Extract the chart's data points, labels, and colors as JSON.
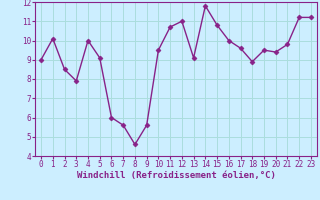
{
  "x": [
    0,
    1,
    2,
    3,
    4,
    5,
    6,
    7,
    8,
    9,
    10,
    11,
    12,
    13,
    14,
    15,
    16,
    17,
    18,
    19,
    20,
    21,
    22,
    23
  ],
  "y": [
    9.0,
    10.1,
    8.5,
    7.9,
    10.0,
    9.1,
    6.0,
    5.6,
    4.6,
    5.6,
    9.5,
    10.7,
    11.0,
    9.1,
    11.8,
    10.8,
    10.0,
    9.6,
    8.9,
    9.5,
    9.4,
    9.8,
    11.2,
    11.2
  ],
  "line_color": "#882288",
  "marker": "D",
  "marker_size": 2.5,
  "xlabel": "Windchill (Refroidissement éolien,°C)",
  "xlim_min": -0.5,
  "xlim_max": 23.5,
  "ylim_min": 4,
  "ylim_max": 12,
  "yticks": [
    4,
    5,
    6,
    7,
    8,
    9,
    10,
    11,
    12
  ],
  "xticks": [
    0,
    1,
    2,
    3,
    4,
    5,
    6,
    7,
    8,
    9,
    10,
    11,
    12,
    13,
    14,
    15,
    16,
    17,
    18,
    19,
    20,
    21,
    22,
    23
  ],
  "grid_color": "#aadddd",
  "background_color": "#cceeff",
  "axis_label_fontsize": 6.5,
  "tick_fontsize": 5.5,
  "tick_color": "#882288",
  "axis_color": "#882288",
  "line_width": 1.0
}
